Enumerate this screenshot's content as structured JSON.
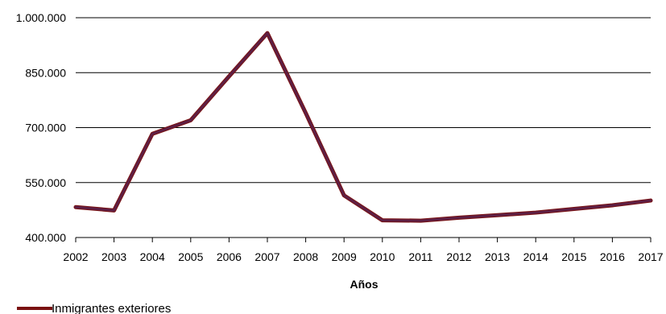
{
  "chart_data": {
    "type": "line",
    "title": "",
    "xlabel": "Años",
    "ylabel": "",
    "categories": [
      "2002",
      "2003",
      "2004",
      "2005",
      "2006",
      "2007",
      "2008",
      "2009",
      "2010",
      "2011",
      "2012",
      "2013",
      "2014",
      "2015",
      "2016",
      "2017"
    ],
    "series": [
      {
        "name": "Inmigrantes exteriores",
        "values": [
          483000,
          474000,
          683000,
          720000,
          840000,
          958000,
          740000,
          515000,
          447000,
          446000,
          454000,
          461000,
          468000,
          478000,
          488000,
          501000
        ],
        "color": "#5e1f44",
        "outline_color": "#7a1212"
      }
    ],
    "ylim": [
      400000,
      1000000
    ],
    "yticks": [
      400000,
      550000,
      700000,
      850000,
      1000000
    ],
    "ytick_labels": [
      "400.000",
      "550.000",
      "700.000",
      "850.000",
      "1.000.000"
    ],
    "grid": "horizontal",
    "legend": "bottom-left"
  }
}
